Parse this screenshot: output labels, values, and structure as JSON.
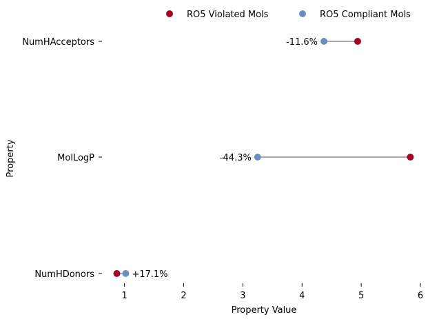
{
  "chart_data": {
    "type": "scatter",
    "xlabel": "Property Value",
    "ylabel": "Property",
    "xlim": [
      0.62,
      6.0
    ],
    "xticks": [
      1,
      2,
      3,
      4,
      5,
      6
    ],
    "categories": [
      "NumHAcceptors",
      "MolLogP",
      "NumHDonors"
    ],
    "legend_position": "top",
    "series": [
      {
        "name": "RO5 Violated Mols",
        "color": "#a50026",
        "values": [
          4.94,
          5.83,
          0.87
        ]
      },
      {
        "name": "RO5 Compliant Mols",
        "color": "#6b8ebf",
        "values": [
          4.37,
          3.25,
          1.02
        ]
      }
    ],
    "annotations": [
      "-11.6%",
      "-44.3%",
      "+17.1%"
    ],
    "connector_color": "#aaaaaa",
    "grid": false
  }
}
